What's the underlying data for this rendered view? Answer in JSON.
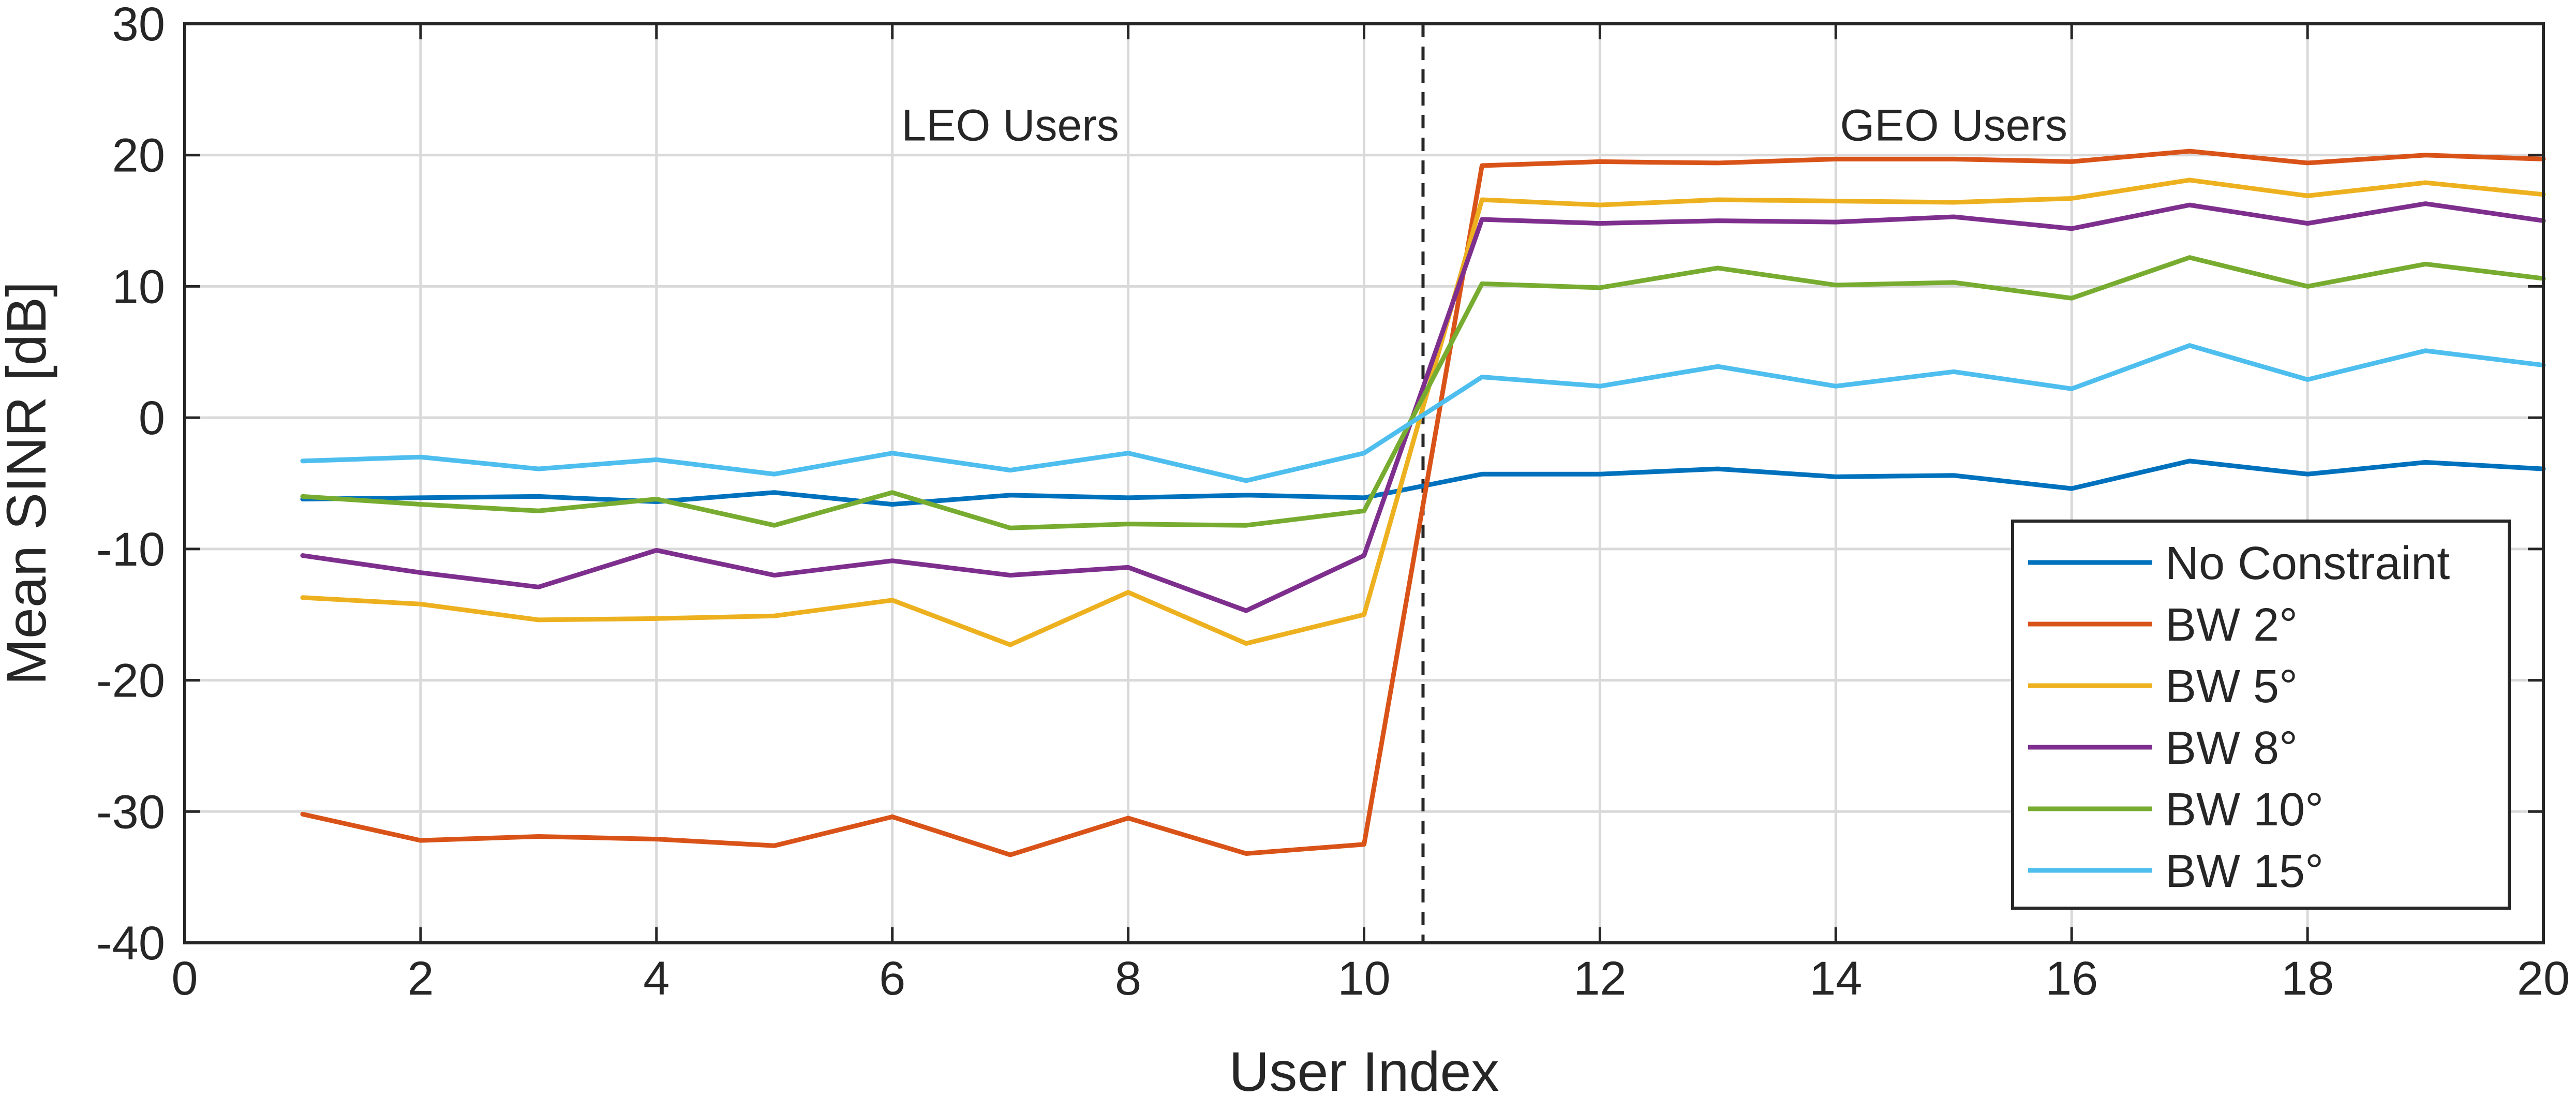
{
  "chart_data": {
    "type": "line",
    "xlabel": "User Index",
    "ylabel": "Mean SINR [dB]",
    "xlim": [
      0,
      20
    ],
    "ylim": [
      -40,
      30
    ],
    "xticks": [
      0,
      2,
      4,
      6,
      8,
      10,
      12,
      14,
      16,
      18,
      20
    ],
    "yticks": [
      -40,
      -30,
      -20,
      -10,
      0,
      10,
      20,
      30
    ],
    "grid": true,
    "legend_position": "bottom-right",
    "x": [
      1,
      2,
      3,
      4,
      5,
      6,
      7,
      8,
      9,
      10,
      11,
      12,
      13,
      14,
      15,
      16,
      17,
      18,
      19,
      20
    ],
    "series": [
      {
        "name": "No Constraint",
        "color": "#0072BD",
        "values": [
          -6.2,
          -6.1,
          -6.0,
          -6.4,
          -5.7,
          -6.6,
          -5.9,
          -6.1,
          -5.9,
          -6.1,
          -4.3,
          -4.3,
          -3.9,
          -4.5,
          -4.4,
          -5.4,
          -3.3,
          -4.3,
          -3.4,
          -3.9
        ]
      },
      {
        "name": "BW 2°",
        "color": "#D95319",
        "values": [
          -30.2,
          -32.2,
          -31.9,
          -32.1,
          -32.6,
          -30.4,
          -33.3,
          -30.5,
          -33.2,
          -32.5,
          19.2,
          19.5,
          19.4,
          19.7,
          19.7,
          19.5,
          20.3,
          19.4,
          20.0,
          19.7
        ]
      },
      {
        "name": "BW 5°",
        "color": "#EDB120",
        "values": [
          -13.7,
          -14.2,
          -15.4,
          -15.3,
          -15.1,
          -13.9,
          -17.3,
          -13.3,
          -17.2,
          -15.0,
          16.6,
          16.2,
          16.6,
          16.5,
          16.4,
          16.7,
          18.1,
          16.9,
          17.9,
          17.0
        ]
      },
      {
        "name": "BW 8°",
        "color": "#7E2F8E",
        "values": [
          -10.5,
          -11.8,
          -12.9,
          -10.1,
          -12.0,
          -10.9,
          -12.0,
          -11.4,
          -14.7,
          -10.5,
          15.1,
          14.8,
          15.0,
          14.9,
          15.3,
          14.4,
          16.2,
          14.8,
          16.3,
          15.0
        ]
      },
      {
        "name": "BW 10°",
        "color": "#77AC30",
        "values": [
          -6.0,
          -6.6,
          -7.1,
          -6.2,
          -8.2,
          -5.7,
          -8.4,
          -8.1,
          -8.2,
          -7.1,
          10.2,
          9.9,
          11.4,
          10.1,
          10.3,
          9.1,
          12.2,
          10.0,
          11.7,
          10.6
        ]
      },
      {
        "name": "BW 15°",
        "color": "#4DBEEE",
        "values": [
          -3.3,
          -3.0,
          -3.9,
          -3.2,
          -4.3,
          -2.7,
          -4.0,
          -2.7,
          -4.8,
          -2.7,
          3.1,
          2.4,
          3.9,
          2.4,
          3.5,
          2.2,
          5.5,
          2.9,
          5.1,
          4.0
        ]
      }
    ],
    "vertical_line": {
      "x": 10.5,
      "style": "dashed"
    },
    "annotations": [
      {
        "text": "LEO Users",
        "x": 7.0,
        "y": 22.3
      },
      {
        "text": "GEO Users",
        "x": 15.0,
        "y": 22.3
      }
    ]
  }
}
